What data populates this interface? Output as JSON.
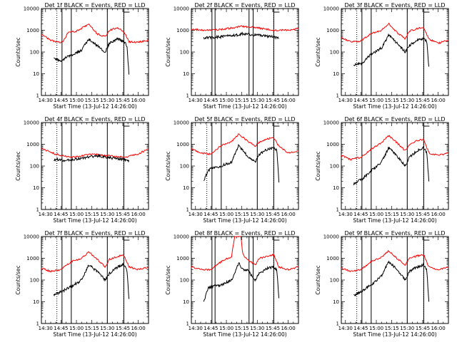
{
  "chart_data": {
    "type": "line",
    "start_time_label": "Start Time (13-Jul-12 14:26:00)",
    "y_axis_label": "Counts/sec",
    "x_tick_labels": [
      "14:30",
      "14:45",
      "15:00",
      "15:15",
      "15:30",
      "15:45",
      "16:00"
    ],
    "y_tick_labels": [
      "1",
      "10",
      "100",
      "1000",
      "10000"
    ],
    "xlim": [
      "14:26",
      "16:10"
    ],
    "ylim": [
      1,
      10000
    ],
    "y_scale": "log",
    "series_colors": {
      "events": "#000000",
      "lld": "#ff0000"
    },
    "panels": [
      {
        "title": "Det 1f BLACK = Events, RED = LLD",
        "dotted_lines": [
          "14:41",
          "15:46"
        ],
        "solid_lines": [
          "14:46",
          "14:55",
          "15:30",
          "15:46"
        ],
        "events_start": "14:38",
        "events_end": "15:51",
        "lld_start": "14:26",
        "lld_end": "16:10",
        "events_knots": [
          [
            "14:38",
            50
          ],
          [
            "14:46",
            40
          ],
          [
            "14:50",
            60
          ],
          [
            "14:55",
            70
          ],
          [
            "15:05",
            120
          ],
          [
            "15:12",
            400
          ],
          [
            "15:20",
            200
          ],
          [
            "15:28",
            100
          ],
          [
            "15:32",
            250
          ],
          [
            "15:40",
            400
          ],
          [
            "15:46",
            300
          ],
          [
            "15:49",
            200
          ],
          [
            "15:51",
            10
          ]
        ],
        "lld_knots": [
          [
            "14:26",
            650
          ],
          [
            "14:35",
            350
          ],
          [
            "14:43",
            280
          ],
          [
            "14:47",
            300
          ],
          [
            "14:52",
            800
          ],
          [
            "15:00",
            900
          ],
          [
            "15:12",
            1900
          ],
          [
            "15:20",
            700
          ],
          [
            "15:28",
            500
          ],
          [
            "15:32",
            1000
          ],
          [
            "15:40",
            1300
          ],
          [
            "15:46",
            900
          ],
          [
            "15:51",
            300
          ],
          [
            "16:00",
            280
          ],
          [
            "16:10",
            350
          ]
        ]
      },
      {
        "title": "Det 2f BLACK = Events, RED = LLD",
        "dotted_lines": [
          "15:46"
        ],
        "solid_lines": [
          "14:46",
          "14:49",
          "15:22",
          "15:26",
          "15:46"
        ],
        "events_start": "14:38",
        "events_end": "15:51",
        "lld_start": "14:26",
        "lld_end": "16:10",
        "events_knots": [
          [
            "14:38",
            450
          ],
          [
            "14:55",
            500
          ],
          [
            "15:10",
            600
          ],
          [
            "15:15",
            700
          ],
          [
            "15:30",
            600
          ],
          [
            "15:46",
            500
          ],
          [
            "15:51",
            450
          ]
        ],
        "lld_knots": [
          [
            "14:26",
            1100
          ],
          [
            "14:40",
            1000
          ],
          [
            "14:55",
            1100
          ],
          [
            "15:15",
            1500
          ],
          [
            "15:30",
            1300
          ],
          [
            "15:46",
            1000
          ],
          [
            "16:00",
            1000
          ],
          [
            "16:10",
            1200
          ]
        ]
      },
      {
        "title": "Det 3f BLACK = Events, RED = LLD",
        "dotted_lines": [
          "14:41",
          "15:46"
        ],
        "solid_lines": [
          "14:46",
          "14:55",
          "15:30",
          "15:46"
        ],
        "events_start": "14:38",
        "events_end": "15:51",
        "lld_start": "14:26",
        "lld_end": "16:10",
        "events_knots": [
          [
            "14:38",
            25
          ],
          [
            "14:46",
            30
          ],
          [
            "14:55",
            80
          ],
          [
            "15:05",
            150
          ],
          [
            "15:12",
            600
          ],
          [
            "15:20",
            250
          ],
          [
            "15:28",
            100
          ],
          [
            "15:32",
            200
          ],
          [
            "15:40",
            350
          ],
          [
            "15:46",
            400
          ],
          [
            "15:49",
            300
          ],
          [
            "15:51",
            20
          ]
        ],
        "lld_knots": [
          [
            "14:26",
            450
          ],
          [
            "14:35",
            300
          ],
          [
            "14:45",
            320
          ],
          [
            "14:55",
            700
          ],
          [
            "15:05",
            1000
          ],
          [
            "15:12",
            2000
          ],
          [
            "15:20",
            800
          ],
          [
            "15:28",
            400
          ],
          [
            "15:32",
            900
          ],
          [
            "15:40",
            1200
          ],
          [
            "15:46",
            1300
          ],
          [
            "15:51",
            400
          ],
          [
            "16:00",
            250
          ],
          [
            "16:10",
            350
          ]
        ]
      },
      {
        "title": "Det 4f BLACK = Events, RED = LLD",
        "dotted_lines": [
          "14:41",
          "15:46"
        ],
        "solid_lines": [
          "14:46",
          "14:55",
          "15:30",
          "15:46"
        ],
        "events_start": "14:38",
        "events_end": "15:51",
        "lld_start": "14:26",
        "lld_end": "16:10",
        "events_knots": [
          [
            "14:38",
            200
          ],
          [
            "14:50",
            180
          ],
          [
            "15:05",
            230
          ],
          [
            "15:20",
            300
          ],
          [
            "15:35",
            230
          ],
          [
            "15:46",
            200
          ],
          [
            "15:51",
            180
          ]
        ],
        "lld_knots": [
          [
            "14:26",
            650
          ],
          [
            "14:40",
            350
          ],
          [
            "14:55",
            250
          ],
          [
            "15:15",
            350
          ],
          [
            "15:30",
            300
          ],
          [
            "15:46",
            250
          ],
          [
            "16:00",
            350
          ],
          [
            "16:10",
            650
          ]
        ]
      },
      {
        "title": "Det 5f BLACK = Events, RED = LLD",
        "dotted_lines": [
          "14:41",
          "15:46"
        ],
        "solid_lines": [
          "14:46",
          "14:55",
          "15:30",
          "15:46"
        ],
        "events_start": "14:38",
        "events_end": "15:51",
        "lld_start": "14:26",
        "lld_end": "16:10",
        "events_knots": [
          [
            "14:38",
            20
          ],
          [
            "14:42",
            60
          ],
          [
            "14:46",
            80
          ],
          [
            "14:55",
            100
          ],
          [
            "15:05",
            150
          ],
          [
            "15:12",
            900
          ],
          [
            "15:20",
            300
          ],
          [
            "15:28",
            150
          ],
          [
            "15:32",
            350
          ],
          [
            "15:40",
            600
          ],
          [
            "15:46",
            700
          ],
          [
            "15:49",
            500
          ],
          [
            "15:51",
            20
          ]
        ],
        "lld_knots": [
          [
            "14:26",
            600
          ],
          [
            "14:35",
            400
          ],
          [
            "14:45",
            350
          ],
          [
            "14:55",
            900
          ],
          [
            "15:05",
            1300
          ],
          [
            "15:12",
            3000
          ],
          [
            "15:20",
            1500
          ],
          [
            "15:28",
            800
          ],
          [
            "15:32",
            1300
          ],
          [
            "15:40",
            1800
          ],
          [
            "15:46",
            2000
          ],
          [
            "15:51",
            800
          ],
          [
            "16:00",
            400
          ],
          [
            "16:10",
            500
          ]
        ]
      },
      {
        "title": "Det 6f BLACK = Events, RED = LLD",
        "dotted_lines": [
          "14:41",
          "15:46"
        ],
        "solid_lines": [
          "14:46",
          "14:55",
          "15:30",
          "15:46"
        ],
        "events_start": "14:38",
        "events_end": "15:51",
        "lld_start": "14:26",
        "lld_end": "16:10",
        "events_knots": [
          [
            "14:38",
            15
          ],
          [
            "14:46",
            25
          ],
          [
            "14:55",
            60
          ],
          [
            "15:05",
            150
          ],
          [
            "15:12",
            700
          ],
          [
            "15:20",
            300
          ],
          [
            "15:28",
            100
          ],
          [
            "15:32",
            250
          ],
          [
            "15:40",
            500
          ],
          [
            "15:46",
            700
          ],
          [
            "15:49",
            400
          ],
          [
            "15:51",
            20
          ]
        ],
        "lld_knots": [
          [
            "14:26",
            300
          ],
          [
            "14:35",
            200
          ],
          [
            "14:45",
            250
          ],
          [
            "14:55",
            600
          ],
          [
            "15:05",
            1200
          ],
          [
            "15:12",
            2500
          ],
          [
            "15:20",
            1200
          ],
          [
            "15:28",
            500
          ],
          [
            "15:32",
            1000
          ],
          [
            "15:40",
            1500
          ],
          [
            "15:46",
            1700
          ],
          [
            "15:51",
            400
          ],
          [
            "16:00",
            300
          ],
          [
            "16:10",
            400
          ]
        ]
      },
      {
        "title": "Det 7f BLACK = Events, RED = LLD",
        "dotted_lines": [
          "14:41",
          "15:46"
        ],
        "solid_lines": [
          "14:46",
          "14:55",
          "15:30",
          "15:46"
        ],
        "events_start": "14:38",
        "events_end": "15:51",
        "lld_start": "14:26",
        "lld_end": "16:10",
        "events_knots": [
          [
            "14:38",
            20
          ],
          [
            "14:46",
            30
          ],
          [
            "14:55",
            50
          ],
          [
            "15:05",
            100
          ],
          [
            "15:12",
            500
          ],
          [
            "15:20",
            250
          ],
          [
            "15:28",
            100
          ],
          [
            "15:32",
            200
          ],
          [
            "15:40",
            400
          ],
          [
            "15:46",
            500
          ],
          [
            "15:49",
            300
          ],
          [
            "15:51",
            15
          ]
        ],
        "lld_knots": [
          [
            "14:26",
            350
          ],
          [
            "14:35",
            250
          ],
          [
            "14:45",
            300
          ],
          [
            "14:55",
            700
          ],
          [
            "15:05",
            1000
          ],
          [
            "15:12",
            2000
          ],
          [
            "15:20",
            900
          ],
          [
            "15:28",
            400
          ],
          [
            "15:32",
            900
          ],
          [
            "15:40",
            1200
          ],
          [
            "15:46",
            1400
          ],
          [
            "15:51",
            400
          ],
          [
            "16:00",
            300
          ],
          [
            "16:10",
            400
          ]
        ]
      },
      {
        "title": "Det 8f BLACK = Events, RED = LLD",
        "dotted_lines": [
          "15:46"
        ],
        "solid_lines": [
          "14:46",
          "14:49",
          "15:22",
          "15:26",
          "15:46"
        ],
        "events_start": "14:38",
        "events_end": "15:51",
        "lld_start": "14:26",
        "lld_end": "16:10",
        "events_knots": [
          [
            "14:38",
            10
          ],
          [
            "14:42",
            40
          ],
          [
            "14:46",
            50
          ],
          [
            "14:55",
            60
          ],
          [
            "15:05",
            100
          ],
          [
            "15:12",
            600
          ],
          [
            "15:16",
            300
          ],
          [
            "15:20",
            300
          ],
          [
            "15:28",
            100
          ],
          [
            "15:32",
            200
          ],
          [
            "15:40",
            350
          ],
          [
            "15:46",
            400
          ],
          [
            "15:49",
            300
          ],
          [
            "15:51",
            15
          ]
        ],
        "lld_knots": [
          [
            "14:26",
            400
          ],
          [
            "14:35",
            300
          ],
          [
            "14:45",
            300
          ],
          [
            "14:55",
            700
          ],
          [
            "15:05",
            1200
          ],
          [
            "15:08",
            10000
          ],
          [
            "15:14",
            10000
          ],
          [
            "15:16",
            1500
          ],
          [
            "15:20",
            900
          ],
          [
            "15:28",
            500
          ],
          [
            "15:32",
            1000
          ],
          [
            "15:40",
            1200
          ],
          [
            "15:46",
            1500
          ],
          [
            "15:51",
            400
          ],
          [
            "16:00",
            300
          ],
          [
            "16:10",
            400
          ]
        ]
      },
      {
        "title": "Det 9f BLACK = Events, RED = LLD",
        "dotted_lines": [
          "14:41",
          "15:46"
        ],
        "solid_lines": [
          "14:46",
          "14:55",
          "15:30",
          "15:46"
        ],
        "events_start": "14:38",
        "events_end": "15:51",
        "lld_start": "14:26",
        "lld_end": "16:10",
        "events_knots": [
          [
            "14:38",
            20
          ],
          [
            "14:46",
            30
          ],
          [
            "14:55",
            60
          ],
          [
            "15:05",
            150
          ],
          [
            "15:12",
            700
          ],
          [
            "15:20",
            300
          ],
          [
            "15:28",
            100
          ],
          [
            "15:32",
            250
          ],
          [
            "15:40",
            400
          ],
          [
            "15:46",
            500
          ],
          [
            "15:49",
            300
          ],
          [
            "15:51",
            10
          ]
        ],
        "lld_knots": [
          [
            "14:26",
            350
          ],
          [
            "14:35",
            250
          ],
          [
            "14:45",
            300
          ],
          [
            "14:55",
            700
          ],
          [
            "15:05",
            1100
          ],
          [
            "15:12",
            2200
          ],
          [
            "15:20",
            1000
          ],
          [
            "15:28",
            500
          ],
          [
            "15:32",
            1000
          ],
          [
            "15:40",
            1300
          ],
          [
            "15:46",
            1500
          ],
          [
            "15:51",
            400
          ],
          [
            "16:00",
            300
          ],
          [
            "16:10",
            400
          ]
        ]
      }
    ]
  }
}
